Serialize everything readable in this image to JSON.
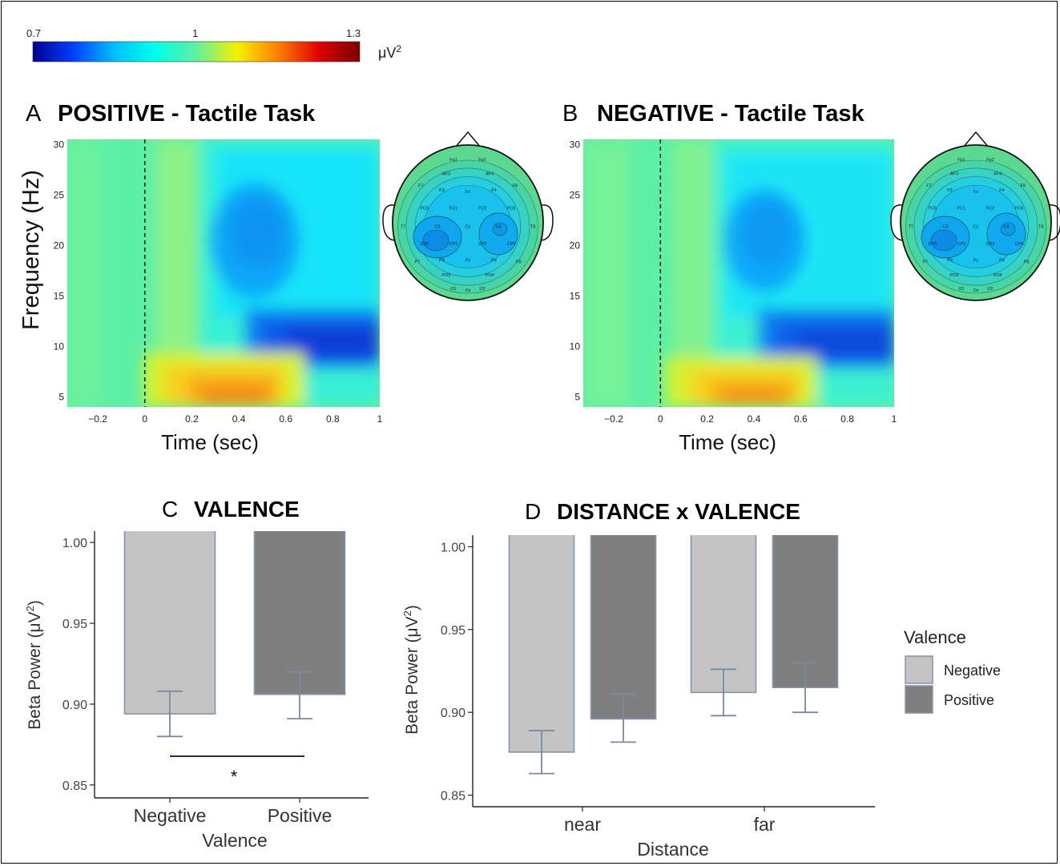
{
  "colors": {
    "bar_negative": "#c4c4c4",
    "bar_positive": "#7f7f7f",
    "bar_outline": "#8594a8",
    "errorbar": "#7a8aa0",
    "colormap": [
      "#00008f",
      "#0040ff",
      "#00c0ff",
      "#00ffe8",
      "#60f0a0",
      "#f4f000",
      "#ff8000",
      "#e00000",
      "#7a0000"
    ]
  },
  "colorbar": {
    "ticks": [
      "0.7",
      "1",
      "1.3"
    ],
    "unit": "μV",
    "unit_sup": "2",
    "range": [
      0.7,
      1.3
    ]
  },
  "chart_data": [
    {
      "type": "heatmap",
      "panel": "A",
      "title": "POSITIVE - Tactile Task",
      "xlabel": "Time (sec)",
      "ylabel": "Frequency (Hz)",
      "xticks": [
        "−0.2",
        "0",
        "0.2",
        "0.4",
        "0.6",
        "0.8",
        "1"
      ],
      "yticks": [
        "30",
        "25",
        "20",
        "15",
        "10",
        "5"
      ],
      "xlim": [
        -0.33,
        1.0
      ],
      "ylim": [
        4,
        30.5
      ],
      "stimulus_onset": 0,
      "topomap_electrodes": [
        "Fp1",
        "Fp2",
        "AF3",
        "AF4",
        "F7",
        "F3",
        "Fz",
        "F4",
        "F8",
        "FC5",
        "FC1",
        "FC2",
        "FC6",
        "T7",
        "C3",
        "Cz",
        "C4",
        "T8",
        "CP5",
        "CP1",
        "CP2",
        "CP6",
        "P7",
        "P3",
        "Pz",
        "P4",
        "P8",
        "PO3",
        "PO4",
        "O1",
        "Oz",
        "O2"
      ]
    },
    {
      "type": "heatmap",
      "panel": "B",
      "title": "NEGATIVE - Tactile Task",
      "xlabel": "Time (sec)",
      "ylabel": "",
      "xticks": [
        "−0.2",
        "0",
        "0.2",
        "0.4",
        "0.6",
        "0.8",
        "1"
      ],
      "yticks": [
        "30",
        "25",
        "20",
        "15",
        "10",
        "5"
      ],
      "xlim": [
        -0.33,
        1.0
      ],
      "ylim": [
        4,
        30.5
      ],
      "stimulus_onset": 0,
      "topomap_electrodes": [
        "Fp1",
        "Fp2",
        "AF3",
        "AF4",
        "F7",
        "F3",
        "Fz",
        "F4",
        "F8",
        "FC5",
        "FC1",
        "FC2",
        "FC6",
        "T7",
        "C3",
        "Cz",
        "C4",
        "T8",
        "CP5",
        "CP1",
        "CP2",
        "CP6",
        "P7",
        "P3",
        "Pz",
        "P4",
        "P8",
        "PO3",
        "PO4",
        "O1",
        "Oz",
        "O2"
      ]
    },
    {
      "type": "bar",
      "panel": "C",
      "title": "VALENCE",
      "xlabel": "Valence",
      "ylabel": "Beta Power (μV",
      "ylabel_sup": "2",
      "ylabel_end": ")",
      "categories": [
        "Negative",
        "Positive"
      ],
      "values": [
        0.894,
        0.906
      ],
      "error_low": [
        0.88,
        0.891
      ],
      "error_high": [
        0.908,
        0.92
      ],
      "yticks": [
        "0.85",
        "0.90",
        "0.95",
        "1.00"
      ],
      "ylim": [
        0.842,
        1.007
      ],
      "significance": "*"
    },
    {
      "type": "bar",
      "panel": "D",
      "title": "DISTANCE x VALENCE",
      "xlabel": "Distance",
      "ylabel": "Beta Power (μV",
      "ylabel_sup": "2",
      "ylabel_end": ")",
      "categories": [
        "near",
        "far"
      ],
      "series": [
        {
          "name": "Negative",
          "values": [
            0.876,
            0.912
          ],
          "error_low": [
            0.863,
            0.898
          ],
          "error_high": [
            0.889,
            0.926
          ]
        },
        {
          "name": "Positive",
          "values": [
            0.896,
            0.915
          ],
          "error_low": [
            0.882,
            0.9
          ],
          "error_high": [
            0.911,
            0.93
          ]
        }
      ],
      "yticks": [
        "0.85",
        "0.90",
        "0.95",
        "1.00"
      ],
      "ylim": [
        0.843,
        1.007
      ],
      "legend_title": "Valence",
      "legend_position": "right"
    }
  ]
}
